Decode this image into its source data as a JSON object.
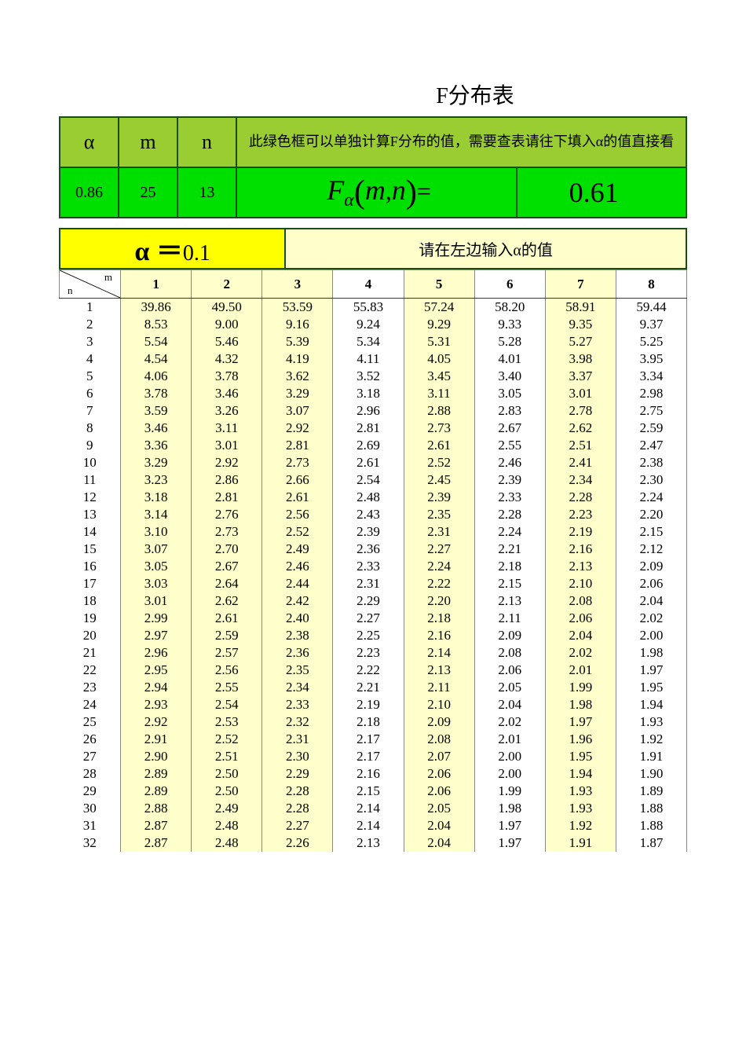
{
  "title": "F分布表",
  "top": {
    "labels": {
      "alpha": "α",
      "m": "m",
      "n": "n"
    },
    "note": "此绿色框可以单独计算F分布的值，需要查表请往下填入α的值直接看",
    "values": {
      "alpha": "0.86",
      "m": "25",
      "n": "13"
    },
    "formula_parts": {
      "F": "F",
      "sub": "α",
      "lp": "(",
      "m": "m",
      "comma": ",",
      "n": "n",
      "rp": ")",
      "eq": "="
    },
    "result": "0.61",
    "colors": {
      "row1_bg": "#9acd32",
      "row2_bg": "#00e000",
      "border": "#1a4d1a"
    }
  },
  "alpha_section": {
    "prefix": "α ＝",
    "value": "0.1",
    "note": "请在左边输入α的值",
    "colors": {
      "left_bg": "#ffff00",
      "right_bg": "#ffffcc"
    }
  },
  "f_table": {
    "type": "table",
    "corner": {
      "m": "m",
      "n": "n"
    },
    "m_columns": [
      "1",
      "2",
      "3",
      "4",
      "5",
      "6",
      "7",
      "8"
    ],
    "highlight_m": [
      "1",
      "2",
      "3",
      "5",
      "7"
    ],
    "n_rows": [
      "1",
      "2",
      "3",
      "4",
      "5",
      "6",
      "7",
      "8",
      "9",
      "10",
      "11",
      "12",
      "13",
      "14",
      "15",
      "16",
      "17",
      "18",
      "19",
      "20",
      "21",
      "22",
      "23",
      "24",
      "25",
      "26",
      "27",
      "28",
      "29",
      "30",
      "31",
      "32"
    ],
    "rows": [
      [
        "39.86",
        "49.50",
        "53.59",
        "55.83",
        "57.24",
        "58.20",
        "58.91",
        "59.44"
      ],
      [
        "8.53",
        "9.00",
        "9.16",
        "9.24",
        "9.29",
        "9.33",
        "9.35",
        "9.37"
      ],
      [
        "5.54",
        "5.46",
        "5.39",
        "5.34",
        "5.31",
        "5.28",
        "5.27",
        "5.25"
      ],
      [
        "4.54",
        "4.32",
        "4.19",
        "4.11",
        "4.05",
        "4.01",
        "3.98",
        "3.95"
      ],
      [
        "4.06",
        "3.78",
        "3.62",
        "3.52",
        "3.45",
        "3.40",
        "3.37",
        "3.34"
      ],
      [
        "3.78",
        "3.46",
        "3.29",
        "3.18",
        "3.11",
        "3.05",
        "3.01",
        "2.98"
      ],
      [
        "3.59",
        "3.26",
        "3.07",
        "2.96",
        "2.88",
        "2.83",
        "2.78",
        "2.75"
      ],
      [
        "3.46",
        "3.11",
        "2.92",
        "2.81",
        "2.73",
        "2.67",
        "2.62",
        "2.59"
      ],
      [
        "3.36",
        "3.01",
        "2.81",
        "2.69",
        "2.61",
        "2.55",
        "2.51",
        "2.47"
      ],
      [
        "3.29",
        "2.92",
        "2.73",
        "2.61",
        "2.52",
        "2.46",
        "2.41",
        "2.38"
      ],
      [
        "3.23",
        "2.86",
        "2.66",
        "2.54",
        "2.45",
        "2.39",
        "2.34",
        "2.30"
      ],
      [
        "3.18",
        "2.81",
        "2.61",
        "2.48",
        "2.39",
        "2.33",
        "2.28",
        "2.24"
      ],
      [
        "3.14",
        "2.76",
        "2.56",
        "2.43",
        "2.35",
        "2.28",
        "2.23",
        "2.20"
      ],
      [
        "3.10",
        "2.73",
        "2.52",
        "2.39",
        "2.31",
        "2.24",
        "2.19",
        "2.15"
      ],
      [
        "3.07",
        "2.70",
        "2.49",
        "2.36",
        "2.27",
        "2.21",
        "2.16",
        "2.12"
      ],
      [
        "3.05",
        "2.67",
        "2.46",
        "2.33",
        "2.24",
        "2.18",
        "2.13",
        "2.09"
      ],
      [
        "3.03",
        "2.64",
        "2.44",
        "2.31",
        "2.22",
        "2.15",
        "2.10",
        "2.06"
      ],
      [
        "3.01",
        "2.62",
        "2.42",
        "2.29",
        "2.20",
        "2.13",
        "2.08",
        "2.04"
      ],
      [
        "2.99",
        "2.61",
        "2.40",
        "2.27",
        "2.18",
        "2.11",
        "2.06",
        "2.02"
      ],
      [
        "2.97",
        "2.59",
        "2.38",
        "2.25",
        "2.16",
        "2.09",
        "2.04",
        "2.00"
      ],
      [
        "2.96",
        "2.57",
        "2.36",
        "2.23",
        "2.14",
        "2.08",
        "2.02",
        "1.98"
      ],
      [
        "2.95",
        "2.56",
        "2.35",
        "2.22",
        "2.13",
        "2.06",
        "2.01",
        "1.97"
      ],
      [
        "2.94",
        "2.55",
        "2.34",
        "2.21",
        "2.11",
        "2.05",
        "1.99",
        "1.95"
      ],
      [
        "2.93",
        "2.54",
        "2.33",
        "2.19",
        "2.10",
        "2.04",
        "1.98",
        "1.94"
      ],
      [
        "2.92",
        "2.53",
        "2.32",
        "2.18",
        "2.09",
        "2.02",
        "1.97",
        "1.93"
      ],
      [
        "2.91",
        "2.52",
        "2.31",
        "2.17",
        "2.08",
        "2.01",
        "1.96",
        "1.92"
      ],
      [
        "2.90",
        "2.51",
        "2.30",
        "2.17",
        "2.07",
        "2.00",
        "1.95",
        "1.91"
      ],
      [
        "2.89",
        "2.50",
        "2.29",
        "2.16",
        "2.06",
        "2.00",
        "1.94",
        "1.90"
      ],
      [
        "2.89",
        "2.50",
        "2.28",
        "2.15",
        "2.06",
        "1.99",
        "1.93",
        "1.89"
      ],
      [
        "2.88",
        "2.49",
        "2.28",
        "2.14",
        "2.05",
        "1.98",
        "1.93",
        "1.88"
      ],
      [
        "2.87",
        "2.48",
        "2.27",
        "2.14",
        "2.04",
        "1.97",
        "1.92",
        "1.88"
      ],
      [
        "2.87",
        "2.48",
        "2.26",
        "2.13",
        "2.04",
        "1.97",
        "1.91",
        "1.87"
      ]
    ],
    "colors": {
      "highlight": "#ffffcc",
      "border": "#888888"
    }
  }
}
